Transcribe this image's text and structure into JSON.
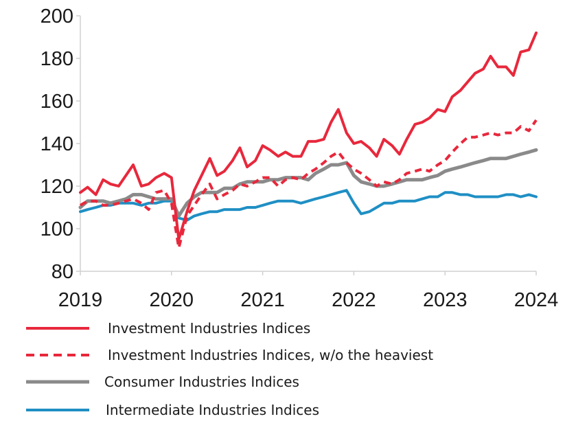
{
  "chart_data": {
    "type": "line",
    "title": "",
    "xlabel": "",
    "ylabel": "",
    "xlim": [
      2019,
      2024.03
    ],
    "ylim": [
      80,
      200
    ],
    "x_ticks": [
      "2019",
      "2020",
      "2021",
      "2022",
      "2023",
      "2024"
    ],
    "y_ticks": [
      "80",
      "100",
      "120",
      "140",
      "160",
      "180",
      "200"
    ],
    "grid": false,
    "legend_position": "bottom",
    "series": [
      {
        "name": "Investment Industries Indices",
        "color": "#e8283c",
        "style": "solid",
        "points": [
          [
            2019.0,
            117
          ],
          [
            2019.08,
            119.5
          ],
          [
            2019.17,
            116
          ],
          [
            2019.25,
            123
          ],
          [
            2019.33,
            121
          ],
          [
            2019.42,
            120
          ],
          [
            2019.5,
            125
          ],
          [
            2019.58,
            130
          ],
          [
            2019.67,
            120
          ],
          [
            2019.75,
            121
          ],
          [
            2019.83,
            124
          ],
          [
            2019.92,
            126
          ],
          [
            2020.0,
            124
          ],
          [
            2020.08,
            95
          ],
          [
            2020.17,
            108
          ],
          [
            2020.25,
            118
          ],
          [
            2020.33,
            125
          ],
          [
            2020.42,
            133
          ],
          [
            2020.5,
            125
          ],
          [
            2020.58,
            127
          ],
          [
            2020.67,
            132
          ],
          [
            2020.75,
            138
          ],
          [
            2020.83,
            129
          ],
          [
            2020.92,
            132
          ],
          [
            2021.0,
            139
          ],
          [
            2021.08,
            137
          ],
          [
            2021.17,
            134
          ],
          [
            2021.25,
            136
          ],
          [
            2021.33,
            134
          ],
          [
            2021.42,
            134
          ],
          [
            2021.5,
            141
          ],
          [
            2021.58,
            141
          ],
          [
            2021.67,
            142
          ],
          [
            2021.75,
            150
          ],
          [
            2021.83,
            156
          ],
          [
            2021.92,
            145
          ],
          [
            2022.0,
            140
          ],
          [
            2022.08,
            141
          ],
          [
            2022.17,
            138
          ],
          [
            2022.25,
            134
          ],
          [
            2022.33,
            142
          ],
          [
            2022.42,
            139
          ],
          [
            2022.5,
            135
          ],
          [
            2022.58,
            142
          ],
          [
            2022.67,
            149
          ],
          [
            2022.75,
            150
          ],
          [
            2022.83,
            152
          ],
          [
            2022.92,
            156
          ],
          [
            2023.0,
            155
          ],
          [
            2023.08,
            162
          ],
          [
            2023.17,
            165
          ],
          [
            2023.25,
            169
          ],
          [
            2023.33,
            173
          ],
          [
            2023.42,
            175
          ],
          [
            2023.5,
            181
          ],
          [
            2023.58,
            176
          ],
          [
            2023.67,
            176
          ],
          [
            2023.75,
            172
          ],
          [
            2023.83,
            183
          ],
          [
            2023.92,
            184
          ],
          [
            2024.0,
            192
          ]
        ]
      },
      {
        "name": "Investment Industries Indices, w/o the heaviest",
        "color": "#e8283c",
        "style": "dashed",
        "points": [
          [
            2019.0,
            111
          ],
          [
            2019.08,
            113
          ],
          [
            2019.17,
            113
          ],
          [
            2019.25,
            111
          ],
          [
            2019.33,
            111
          ],
          [
            2019.42,
            112
          ],
          [
            2019.5,
            113
          ],
          [
            2019.58,
            114
          ],
          [
            2019.67,
            112
          ],
          [
            2019.75,
            109
          ],
          [
            2019.83,
            117
          ],
          [
            2019.92,
            118
          ],
          [
            2020.0,
            112
          ],
          [
            2020.08,
            91
          ],
          [
            2020.17,
            106
          ],
          [
            2020.25,
            111
          ],
          [
            2020.33,
            116
          ],
          [
            2020.42,
            121
          ],
          [
            2020.5,
            114
          ],
          [
            2020.58,
            116
          ],
          [
            2020.67,
            118
          ],
          [
            2020.75,
            121
          ],
          [
            2020.83,
            120
          ],
          [
            2020.92,
            122
          ],
          [
            2021.0,
            124
          ],
          [
            2021.08,
            124
          ],
          [
            2021.17,
            120
          ],
          [
            2021.25,
            123
          ],
          [
            2021.33,
            124
          ],
          [
            2021.42,
            123
          ],
          [
            2021.5,
            126
          ],
          [
            2021.58,
            128
          ],
          [
            2021.67,
            131
          ],
          [
            2021.75,
            134
          ],
          [
            2021.83,
            136
          ],
          [
            2021.92,
            131
          ],
          [
            2022.0,
            128
          ],
          [
            2022.08,
            126
          ],
          [
            2022.17,
            123
          ],
          [
            2022.25,
            120
          ],
          [
            2022.33,
            122
          ],
          [
            2022.42,
            121
          ],
          [
            2022.5,
            123
          ],
          [
            2022.58,
            126
          ],
          [
            2022.67,
            127
          ],
          [
            2022.75,
            128
          ],
          [
            2022.83,
            127
          ],
          [
            2022.92,
            130
          ],
          [
            2023.0,
            132
          ],
          [
            2023.08,
            136
          ],
          [
            2023.17,
            140
          ],
          [
            2023.25,
            143
          ],
          [
            2023.33,
            143
          ],
          [
            2023.42,
            144
          ],
          [
            2023.5,
            145
          ],
          [
            2023.58,
            144
          ],
          [
            2023.67,
            145
          ],
          [
            2023.75,
            145
          ],
          [
            2023.83,
            148
          ],
          [
            2023.92,
            146
          ],
          [
            2024.0,
            151
          ]
        ]
      },
      {
        "name": "Consumer Industries Indices",
        "color": "#8a8a8a",
        "style": "solid",
        "points": [
          [
            2019.0,
            110
          ],
          [
            2019.08,
            113
          ],
          [
            2019.17,
            113
          ],
          [
            2019.25,
            113
          ],
          [
            2019.33,
            112
          ],
          [
            2019.42,
            113
          ],
          [
            2019.5,
            114
          ],
          [
            2019.58,
            116
          ],
          [
            2019.67,
            116
          ],
          [
            2019.75,
            115
          ],
          [
            2019.83,
            114
          ],
          [
            2019.92,
            114
          ],
          [
            2020.0,
            114
          ],
          [
            2020.08,
            106
          ],
          [
            2020.17,
            112
          ],
          [
            2020.25,
            115
          ],
          [
            2020.33,
            117
          ],
          [
            2020.42,
            117
          ],
          [
            2020.5,
            117
          ],
          [
            2020.58,
            119
          ],
          [
            2020.67,
            119
          ],
          [
            2020.75,
            121
          ],
          [
            2020.83,
            122
          ],
          [
            2020.92,
            122
          ],
          [
            2021.0,
            122
          ],
          [
            2021.08,
            123
          ],
          [
            2021.17,
            123
          ],
          [
            2021.25,
            124
          ],
          [
            2021.33,
            124
          ],
          [
            2021.42,
            124
          ],
          [
            2021.5,
            123
          ],
          [
            2021.58,
            126
          ],
          [
            2021.67,
            128
          ],
          [
            2021.75,
            130
          ],
          [
            2021.83,
            130
          ],
          [
            2021.92,
            131
          ],
          [
            2022.0,
            125
          ],
          [
            2022.08,
            122
          ],
          [
            2022.17,
            121
          ],
          [
            2022.25,
            120
          ],
          [
            2022.33,
            120
          ],
          [
            2022.42,
            121
          ],
          [
            2022.5,
            122
          ],
          [
            2022.58,
            123
          ],
          [
            2022.67,
            123
          ],
          [
            2022.75,
            123
          ],
          [
            2022.83,
            124
          ],
          [
            2022.92,
            125
          ],
          [
            2023.0,
            127
          ],
          [
            2023.08,
            128
          ],
          [
            2023.17,
            129
          ],
          [
            2023.25,
            130
          ],
          [
            2023.33,
            131
          ],
          [
            2023.42,
            132
          ],
          [
            2023.5,
            133
          ],
          [
            2023.58,
            133
          ],
          [
            2023.67,
            133
          ],
          [
            2023.75,
            134
          ],
          [
            2023.83,
            135
          ],
          [
            2023.92,
            136
          ],
          [
            2024.0,
            137
          ]
        ]
      },
      {
        "name": "Intermediate Industries Indices",
        "color": "#1f8fc4",
        "style": "solid",
        "points": [
          [
            2019.0,
            108
          ],
          [
            2019.08,
            109
          ],
          [
            2019.17,
            110
          ],
          [
            2019.25,
            111
          ],
          [
            2019.33,
            111
          ],
          [
            2019.42,
            112
          ],
          [
            2019.5,
            112
          ],
          [
            2019.58,
            112
          ],
          [
            2019.67,
            111
          ],
          [
            2019.75,
            112
          ],
          [
            2019.83,
            112
          ],
          [
            2019.92,
            113
          ],
          [
            2020.0,
            113
          ],
          [
            2020.08,
            105
          ],
          [
            2020.17,
            104
          ],
          [
            2020.25,
            106
          ],
          [
            2020.33,
            107
          ],
          [
            2020.42,
            108
          ],
          [
            2020.5,
            108
          ],
          [
            2020.58,
            109
          ],
          [
            2020.67,
            109
          ],
          [
            2020.75,
            109
          ],
          [
            2020.83,
            110
          ],
          [
            2020.92,
            110
          ],
          [
            2021.0,
            111
          ],
          [
            2021.08,
            112
          ],
          [
            2021.17,
            113
          ],
          [
            2021.25,
            113
          ],
          [
            2021.33,
            113
          ],
          [
            2021.42,
            112
          ],
          [
            2021.5,
            113
          ],
          [
            2021.58,
            114
          ],
          [
            2021.67,
            115
          ],
          [
            2021.75,
            116
          ],
          [
            2021.83,
            117
          ],
          [
            2021.92,
            118
          ],
          [
            2022.0,
            112
          ],
          [
            2022.08,
            107
          ],
          [
            2022.17,
            108
          ],
          [
            2022.25,
            110
          ],
          [
            2022.33,
            112
          ],
          [
            2022.42,
            112
          ],
          [
            2022.5,
            113
          ],
          [
            2022.58,
            113
          ],
          [
            2022.67,
            113
          ],
          [
            2022.75,
            114
          ],
          [
            2022.83,
            115
          ],
          [
            2022.92,
            115
          ],
          [
            2023.0,
            117
          ],
          [
            2023.08,
            117
          ],
          [
            2023.17,
            116
          ],
          [
            2023.25,
            116
          ],
          [
            2023.33,
            115
          ],
          [
            2023.42,
            115
          ],
          [
            2023.5,
            115
          ],
          [
            2023.58,
            115
          ],
          [
            2023.67,
            116
          ],
          [
            2023.75,
            116
          ],
          [
            2023.83,
            115
          ],
          [
            2023.92,
            116
          ],
          [
            2024.0,
            115
          ]
        ]
      }
    ]
  }
}
